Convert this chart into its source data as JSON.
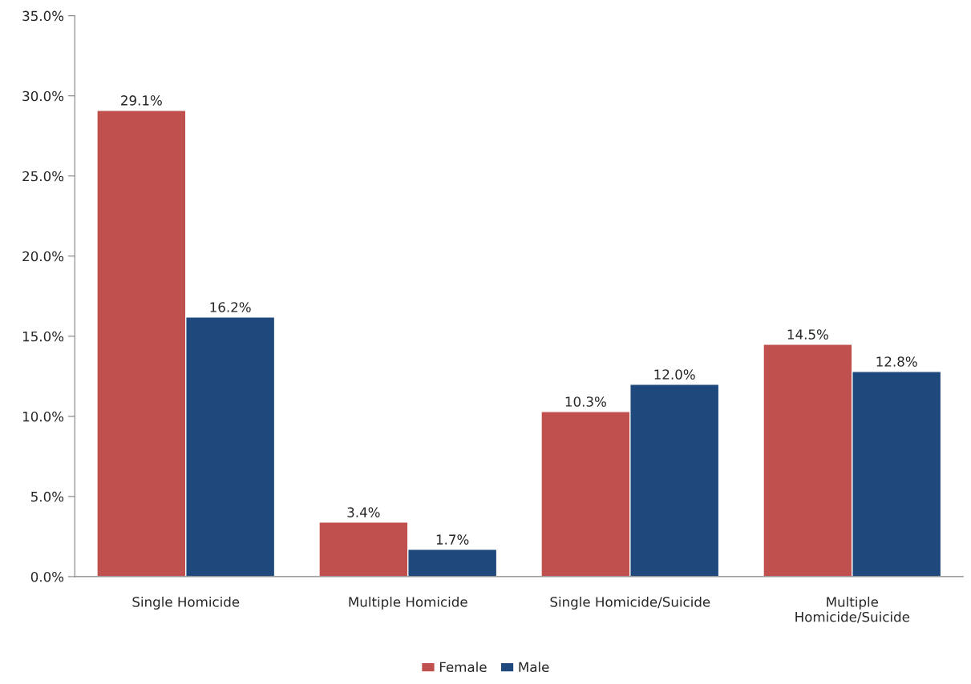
{
  "chart_data": {
    "type": "bar",
    "categories": [
      "Single Homicide",
      "Multiple Homicide",
      "Single Homicide/Suicide",
      "Multiple\nHomicide/Suicide"
    ],
    "series": [
      {
        "name": "Female",
        "color": "#c0504d",
        "values": [
          29.1,
          3.4,
          10.3,
          14.5
        ],
        "value_labels": [
          "29.1%",
          "3.4%",
          "10.3%",
          "14.5%"
        ]
      },
      {
        "name": "Male",
        "color": "#1f497d",
        "values": [
          16.2,
          1.7,
          12.0,
          12.8
        ],
        "value_labels": [
          "16.2%",
          "1.7%",
          "12.0%",
          "12.8%"
        ]
      }
    ],
    "ylim": [
      0,
      35
    ],
    "yticks": [
      {
        "value": 0,
        "label": "0.0%"
      },
      {
        "value": 5,
        "label": "5.0%"
      },
      {
        "value": 10,
        "label": "10.0%"
      },
      {
        "value": 15,
        "label": "15.0%"
      },
      {
        "value": 20,
        "label": "20.0%"
      },
      {
        "value": 25,
        "label": "25.0%"
      },
      {
        "value": 30,
        "label": "30.0%"
      },
      {
        "value": 35,
        "label": "35.0%"
      }
    ],
    "grid": false,
    "legend": "bottom"
  }
}
